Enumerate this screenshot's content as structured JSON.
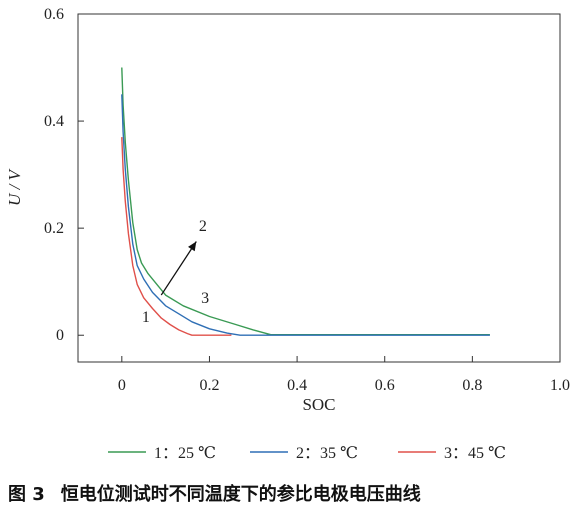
{
  "chart_data": {
    "type": "line",
    "title": "",
    "xlabel": "SOC",
    "ylabel": "U / V",
    "xlim": [
      -0.1,
      1.0
    ],
    "ylim": [
      -0.05,
      0.6
    ],
    "xticks": [
      0,
      0.2,
      0.4,
      0.6,
      0.8,
      1.0
    ],
    "xtick_labels": [
      "0",
      "0.2",
      "0.4",
      "0.6",
      "0.8",
      "1.0"
    ],
    "yticks": [
      0,
      0.2,
      0.4,
      0.6
    ],
    "ytick_labels": [
      "0",
      "0.2",
      "0.4",
      "0.6"
    ],
    "grid": false,
    "legend_placement": "bottom",
    "series": [
      {
        "name": "1：25 ℃",
        "color": "#3a9a54",
        "x": [
          0.0,
          0.003,
          0.008,
          0.015,
          0.025,
          0.035,
          0.045,
          0.06,
          0.08,
          0.1,
          0.14,
          0.2,
          0.26,
          0.3,
          0.34,
          0.5,
          0.7,
          0.84
        ],
        "y": [
          0.5,
          0.43,
          0.36,
          0.29,
          0.21,
          0.16,
          0.135,
          0.115,
          0.095,
          0.075,
          0.055,
          0.035,
          0.02,
          0.01,
          0.001,
          0.001,
          0.001,
          0.001
        ]
      },
      {
        "name": "2：35 ℃",
        "color": "#2f6fb5",
        "x": [
          0.0,
          0.003,
          0.008,
          0.015,
          0.025,
          0.035,
          0.05,
          0.07,
          0.1,
          0.13,
          0.16,
          0.2,
          0.24,
          0.27,
          0.4,
          0.6,
          0.84
        ],
        "y": [
          0.45,
          0.38,
          0.31,
          0.24,
          0.17,
          0.13,
          0.105,
          0.08,
          0.055,
          0.04,
          0.025,
          0.012,
          0.004,
          0.0,
          0.0,
          0.0,
          0.0
        ]
      },
      {
        "name": "3：45 ℃",
        "color": "#e0504a",
        "x": [
          0.0,
          0.003,
          0.008,
          0.015,
          0.025,
          0.035,
          0.05,
          0.07,
          0.09,
          0.11,
          0.13,
          0.15,
          0.16,
          0.2,
          0.25
        ],
        "y": [
          0.37,
          0.31,
          0.25,
          0.19,
          0.13,
          0.095,
          0.07,
          0.05,
          0.032,
          0.02,
          0.01,
          0.003,
          0.0,
          0.0,
          0.0
        ]
      }
    ],
    "annotations": [
      {
        "text": "1",
        "x": 0.055,
        "y": 0.025
      },
      {
        "text": "2",
        "x": 0.185,
        "y": 0.195
      },
      {
        "text": "3",
        "x": 0.19,
        "y": 0.06
      }
    ],
    "arrow": {
      "from": [
        0.09,
        0.075
      ],
      "to": [
        0.17,
        0.175
      ]
    }
  },
  "caption": {
    "number": "图 3",
    "text": "恒电位测试时不同温度下的参比电极电压曲线"
  }
}
